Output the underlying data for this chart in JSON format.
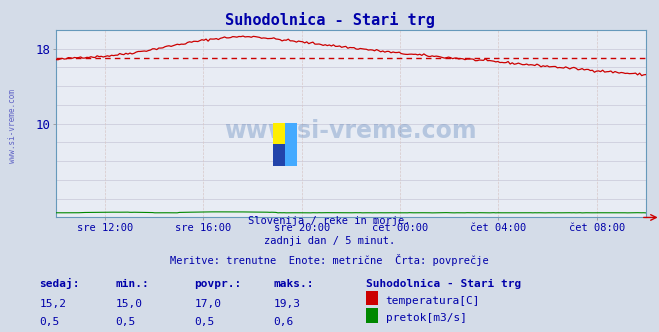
{
  "title": "Suhodolnica - Stari trg",
  "title_color": "#0000aa",
  "bg_color": "#d4dce8",
  "plot_bg_color": "#e8ecf4",
  "grid_color_h": "#c8c8d8",
  "grid_color_v": "#d8c8c8",
  "temp_color": "#cc0000",
  "flow_color": "#008800",
  "avg_line_color": "#cc0000",
  "text_color": "#0000aa",
  "watermark_color": "#3366aa",
  "ylim": [
    0,
    20
  ],
  "avg_temp": 17.0,
  "subtitle1": "Slovenija / reke in morje.",
  "subtitle2": "zadnji dan / 5 minut.",
  "subtitle3": "Meritve: trenutne  Enote: metrične  Črta: povprečje",
  "legend_title": "Suhodolnica - Stari trg",
  "stat_headers": [
    "sedaj:",
    "min.:",
    "povpr.:",
    "maks.:"
  ],
  "temp_stats": [
    "15,2",
    "15,0",
    "17,0",
    "19,3"
  ],
  "flow_stats": [
    "0,5",
    "0,5",
    "0,5",
    "0,6"
  ],
  "temp_label": "temperatura[C]",
  "flow_label": "pretok[m3/s]",
  "n_points": 288,
  "xtick_positions": [
    2,
    6,
    10,
    14,
    18,
    22
  ],
  "xtick_labels": [
    "sre 12:00",
    "sre 16:00",
    "sre 20:00",
    "čet 00:00",
    "čet 04:00",
    "čet 08:00"
  ],
  "ytick_positions": [
    10,
    18
  ],
  "ytick_labels": [
    "10",
    "18"
  ]
}
